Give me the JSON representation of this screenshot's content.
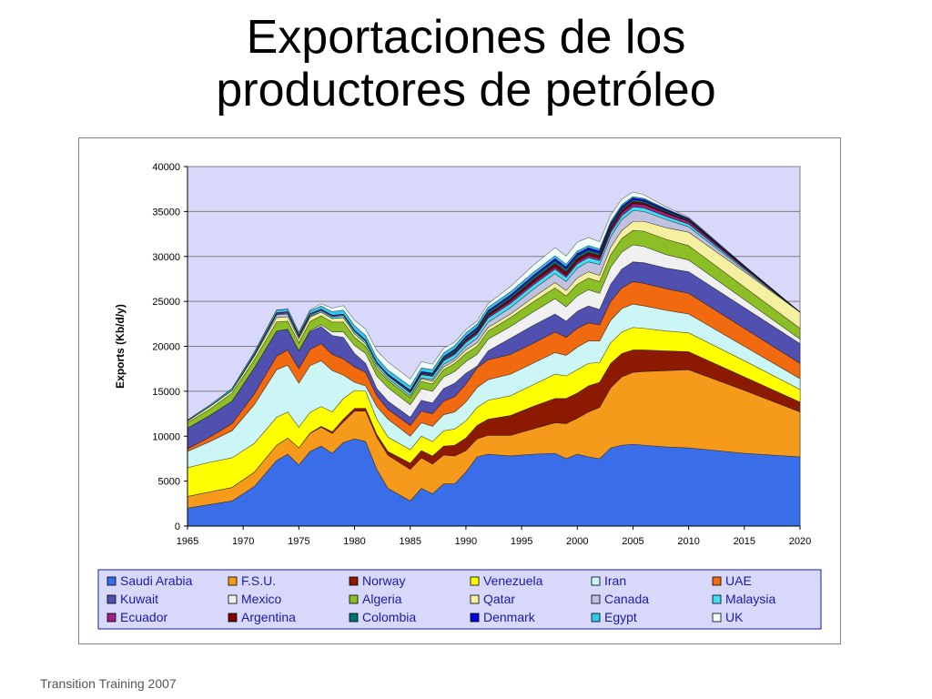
{
  "slide": {
    "title_line1": "Exportaciones de los",
    "title_line2": "productores de petróleo",
    "footer": "Transition Training 2007"
  },
  "chart_data": {
    "type": "area",
    "stacked": true,
    "title": "",
    "xlabel": "",
    "ylabel": "Exports (Kb/d/y)",
    "xlim": [
      1965,
      2020
    ],
    "ylim": [
      0,
      40000
    ],
    "xticks": [
      1965,
      1970,
      1975,
      1980,
      1985,
      1990,
      1995,
      2000,
      2005,
      2010,
      2015,
      2020
    ],
    "yticks": [
      0,
      5000,
      10000,
      15000,
      20000,
      25000,
      30000,
      35000,
      40000
    ],
    "grid": "horizontal",
    "plot_background": "#d8d8fa",
    "legend_position": "bottom",
    "x": [
      1965,
      1967,
      1969,
      1971,
      1973,
      1974,
      1975,
      1976,
      1977,
      1978,
      1979,
      1980,
      1981,
      1982,
      1983,
      1985,
      1986,
      1987,
      1988,
      1989,
      1990,
      1991,
      1992,
      1994,
      1996,
      1998,
      1999,
      2000,
      2001,
      2002,
      2003,
      2004,
      2005,
      2006,
      2008,
      2010,
      2015,
      2020
    ],
    "series": [
      {
        "name": "Saudi Arabia",
        "color": "#3a6ee8",
        "values": [
          2000,
          2400,
          2800,
          4400,
          7300,
          8000,
          6800,
          8300,
          8900,
          8100,
          9300,
          9700,
          9400,
          6300,
          4200,
          2800,
          4200,
          3600,
          4700,
          4700,
          6000,
          7700,
          8000,
          7800,
          8000,
          8100,
          7500,
          8000,
          7700,
          7500,
          8700,
          9000,
          9100,
          9000,
          8800,
          8700,
          8100,
          7700
        ]
      },
      {
        "name": "F.S.U.",
        "color": "#f59a1a",
        "values": [
          1300,
          1400,
          1500,
          1600,
          1700,
          1800,
          1900,
          2000,
          2100,
          2200,
          2300,
          3100,
          3400,
          3600,
          3700,
          3500,
          3400,
          3300,
          3200,
          3100,
          2400,
          2000,
          2100,
          2300,
          2800,
          3400,
          3900,
          4000,
          5000,
          5700,
          6700,
          7600,
          8000,
          8200,
          8500,
          8700,
          7000,
          5000
        ]
      },
      {
        "name": "Norway",
        "color": "#8b1a00",
        "values": [
          0,
          0,
          0,
          0,
          0,
          0,
          0,
          50,
          100,
          200,
          300,
          300,
          300,
          300,
          400,
          700,
          800,
          900,
          1000,
          1200,
          1400,
          1500,
          1800,
          2200,
          2500,
          2700,
          2800,
          2800,
          2900,
          2800,
          2700,
          2600,
          2500,
          2400,
          2200,
          2000,
          1500,
          1100
        ]
      },
      {
        "name": "Venezuela",
        "color": "#ffff00",
        "values": [
          3200,
          3300,
          3300,
          3200,
          3100,
          2900,
          2300,
          2300,
          2200,
          2200,
          2300,
          2000,
          1900,
          1700,
          1600,
          1500,
          1600,
          1600,
          1700,
          1800,
          1900,
          2000,
          2100,
          2200,
          2400,
          2700,
          2500,
          2600,
          2500,
          2200,
          2300,
          2400,
          2500,
          2400,
          2200,
          2100,
          1800,
          1400
        ]
      },
      {
        "name": "Iran",
        "color": "#ccf5f5",
        "values": [
          1800,
          2300,
          3000,
          4300,
          5300,
          5200,
          4900,
          5200,
          5100,
          4600,
          2600,
          900,
          600,
          1400,
          2000,
          1500,
          1500,
          1700,
          1800,
          1900,
          2100,
          2200,
          2300,
          2400,
          2400,
          2400,
          2300,
          2500,
          2500,
          2400,
          2500,
          2600,
          2600,
          2500,
          2300,
          2100,
          1600,
          1200
        ]
      },
      {
        "name": "UAE",
        "color": "#f26a0f",
        "values": [
          300,
          500,
          800,
          1200,
          1500,
          1700,
          1600,
          1800,
          1900,
          1800,
          1800,
          1700,
          1500,
          1200,
          1100,
          1200,
          1300,
          1400,
          1500,
          1700,
          2000,
          2200,
          2200,
          2200,
          2200,
          2300,
          2000,
          2100,
          2000,
          1800,
          2100,
          2300,
          2500,
          2500,
          2400,
          2300,
          2000,
          1700
        ]
      },
      {
        "name": "Kuwait",
        "color": "#5050b0",
        "values": [
          2300,
          2400,
          2500,
          2900,
          2800,
          2300,
          2000,
          2000,
          1900,
          2100,
          2400,
          1500,
          1000,
          800,
          900,
          900,
          1200,
          1200,
          1400,
          1500,
          1200,
          200,
          1000,
          1800,
          2000,
          2000,
          1800,
          1900,
          1900,
          1700,
          1900,
          2100,
          2200,
          2300,
          2300,
          2400,
          2300,
          2200
        ]
      },
      {
        "name": "Mexico",
        "color": "#f0f0f0",
        "values": [
          0,
          0,
          0,
          0,
          0,
          0,
          0,
          100,
          200,
          400,
          600,
          900,
          1100,
          1400,
          1500,
          1400,
          1300,
          1300,
          1300,
          1300,
          1300,
          1300,
          1300,
          1300,
          1500,
          1700,
          1600,
          1700,
          1800,
          1800,
          1900,
          1900,
          1900,
          1800,
          1500,
          1300,
          900,
          500
        ]
      },
      {
        "name": "Algeria",
        "color": "#8cbf26",
        "values": [
          600,
          700,
          900,
          900,
          1000,
          900,
          900,
          1000,
          1000,
          1100,
          1100,
          900,
          800,
          800,
          800,
          800,
          800,
          800,
          800,
          900,
          900,
          900,
          900,
          1000,
          1100,
          1200,
          1200,
          1300,
          1300,
          1300,
          1400,
          1500,
          1600,
          1700,
          1700,
          1600,
          1400,
          1200
        ]
      },
      {
        "name": "Qatar",
        "color": "#f5f0a0",
        "values": [
          200,
          300,
          300,
          400,
          500,
          500,
          400,
          500,
          400,
          400,
          500,
          400,
          300,
          300,
          200,
          200,
          300,
          300,
          300,
          300,
          400,
          400,
          400,
          400,
          500,
          600,
          600,
          700,
          700,
          700,
          800,
          900,
          1000,
          1100,
          1300,
          1500,
          1700,
          1800
        ]
      },
      {
        "name": "Canada",
        "color": "#c0c0e0",
        "values": [
          0,
          0,
          0,
          100,
          300,
          300,
          200,
          100,
          0,
          0,
          0,
          0,
          0,
          0,
          0,
          0,
          100,
          200,
          300,
          300,
          400,
          500,
          600,
          700,
          900,
          1000,
          1000,
          1100,
          1100,
          1200,
          1200,
          1200,
          1200,
          1100,
          900,
          600,
          200,
          0
        ]
      },
      {
        "name": "Malaysia",
        "color": "#40e0f0",
        "values": [
          0,
          0,
          0,
          50,
          80,
          100,
          120,
          150,
          180,
          200,
          230,
          250,
          260,
          280,
          300,
          320,
          340,
          360,
          380,
          400,
          420,
          440,
          450,
          470,
          480,
          500,
          490,
          480,
          470,
          460,
          450,
          440,
          420,
          400,
          350,
          300,
          150,
          0
        ]
      },
      {
        "name": "Ecuador",
        "color": "#a0208a",
        "values": [
          0,
          0,
          0,
          50,
          150,
          150,
          130,
          150,
          150,
          150,
          150,
          150,
          140,
          150,
          150,
          180,
          180,
          100,
          180,
          180,
          200,
          200,
          220,
          250,
          260,
          250,
          230,
          250,
          250,
          250,
          300,
          350,
          350,
          350,
          320,
          300,
          150,
          0
        ]
      },
      {
        "name": "Argentina",
        "color": "#800000",
        "values": [
          0,
          0,
          0,
          0,
          0,
          0,
          0,
          0,
          0,
          0,
          0,
          0,
          0,
          0,
          0,
          0,
          0,
          0,
          0,
          50,
          100,
          150,
          200,
          250,
          300,
          350,
          350,
          330,
          310,
          290,
          270,
          250,
          230,
          200,
          150,
          100,
          50,
          0
        ]
      },
      {
        "name": "Colombia",
        "color": "#007070",
        "values": [
          0,
          0,
          0,
          0,
          0,
          0,
          0,
          0,
          0,
          0,
          0,
          0,
          0,
          0,
          0,
          50,
          100,
          150,
          200,
          230,
          250,
          250,
          260,
          270,
          300,
          350,
          350,
          330,
          300,
          280,
          260,
          240,
          220,
          200,
          160,
          120,
          50,
          0
        ]
      },
      {
        "name": "Denmark",
        "color": "#0000e0",
        "values": [
          0,
          0,
          0,
          0,
          0,
          0,
          0,
          0,
          0,
          0,
          0,
          0,
          0,
          0,
          50,
          60,
          80,
          100,
          110,
          120,
          140,
          150,
          160,
          180,
          200,
          220,
          230,
          240,
          240,
          230,
          220,
          210,
          200,
          180,
          140,
          100,
          50,
          0
        ]
      },
      {
        "name": "Egypt",
        "color": "#30c8f0",
        "values": [
          100,
          150,
          200,
          250,
          300,
          300,
          250,
          300,
          350,
          400,
          450,
          500,
          500,
          500,
          450,
          450,
          400,
          400,
          400,
          400,
          400,
          380,
          360,
          340,
          320,
          300,
          280,
          260,
          240,
          220,
          200,
          180,
          150,
          120,
          80,
          50,
          20,
          0
        ]
      },
      {
        "name": "UK",
        "color": "#f0fff8",
        "values": [
          0,
          0,
          0,
          0,
          0,
          0,
          50,
          100,
          250,
          400,
          500,
          600,
          700,
          800,
          900,
          800,
          700,
          600,
          500,
          400,
          350,
          350,
          400,
          600,
          800,
          900,
          900,
          1000,
          900,
          800,
          700,
          600,
          500,
          400,
          200,
          100,
          20,
          0
        ]
      }
    ]
  }
}
